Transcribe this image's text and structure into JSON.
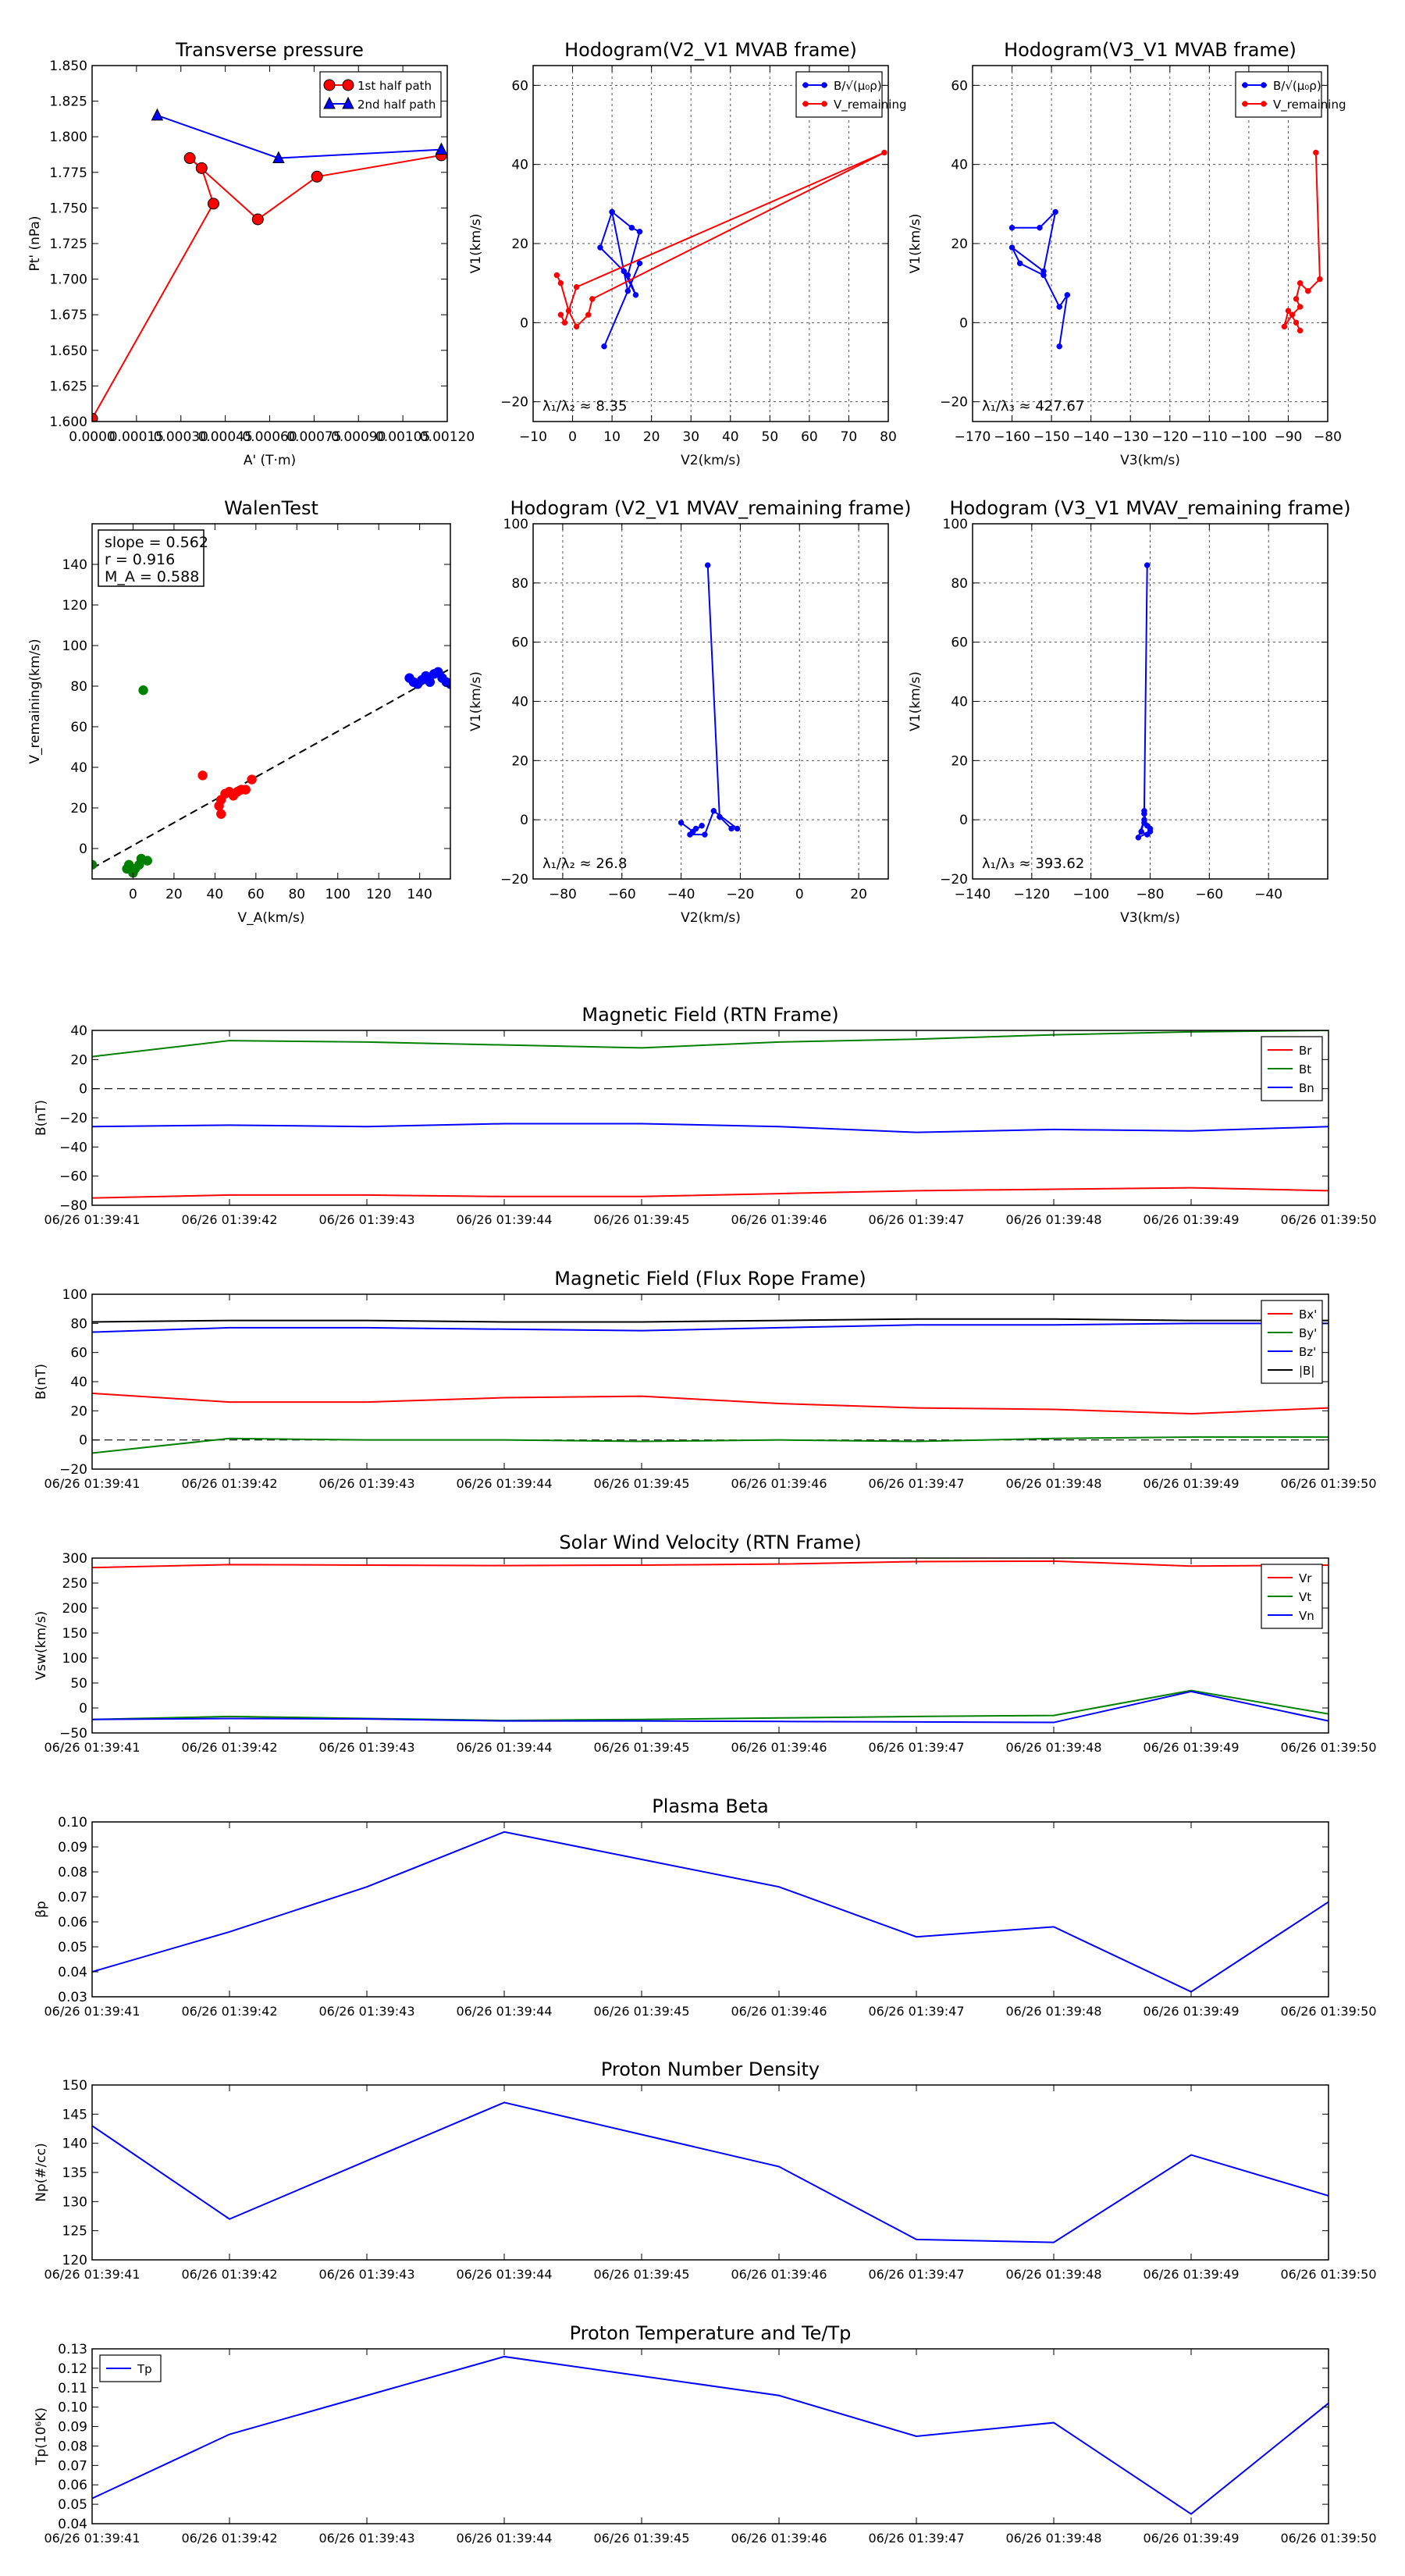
{
  "figure": {
    "colors": {
      "red": "#ff0000",
      "blue": "#0000ff",
      "green": "#008000",
      "black": "#000000",
      "grid": "#555555"
    }
  },
  "chart_data": [
    {
      "id": "transverse_pressure",
      "type": "line",
      "title": "Transverse pressure",
      "xlabel": "A' (T·m)",
      "ylabel": "Pt' (nPa)",
      "xlim": [
        0,
        0.0012
      ],
      "ylim": [
        1.6,
        1.85
      ],
      "grid": false,
      "legend": "top-right",
      "xticks": [
        0,
        0.00015,
        0.0003,
        0.00045,
        0.0006,
        0.00075,
        0.0009,
        0.00105,
        0.0012
      ],
      "xtick_labels": [
        "0.0000",
        "0.00015",
        "0.00030",
        "0.00045",
        "0.00060",
        "0.00075",
        "0.00090",
        "0.00105",
        "0.00120"
      ],
      "yticks": [
        1.6,
        1.625,
        1.65,
        1.675,
        1.7,
        1.725,
        1.75,
        1.775,
        1.8,
        1.825,
        1.85
      ],
      "ytick_labels": [
        "1.600",
        "1.625",
        "1.650",
        "1.675",
        "1.700",
        "1.725",
        "1.750",
        "1.775",
        "1.800",
        "1.825",
        "1.850"
      ],
      "series": [
        {
          "name": "1st half path",
          "color": "#ff0000",
          "marker": "circle",
          "x": [
            0.0,
            0.00041,
            0.00037,
            0.00033,
            0.00056,
            0.00076,
            0.00118
          ],
          "y": [
            1.602,
            1.753,
            1.778,
            1.785,
            1.742,
            1.772,
            1.787
          ]
        },
        {
          "name": "2nd half path",
          "color": "#0000ff",
          "marker": "triangle",
          "x": [
            0.00118,
            0.00063,
            0.00022
          ],
          "y": [
            1.791,
            1.785,
            1.815
          ]
        }
      ]
    },
    {
      "id": "hodo_v2v1_mvab",
      "type": "line",
      "title": "Hodogram(V2_V1 MVAB frame)",
      "xlabel": "V2(km/s)",
      "ylabel": "V1(km/s)",
      "xlim": [
        -10,
        80
      ],
      "ylim": [
        -25,
        65
      ],
      "grid": true,
      "legend": "top-right",
      "xticks": [
        -10,
        0,
        10,
        20,
        30,
        40,
        50,
        60,
        70,
        80
      ],
      "yticks": [
        -20,
        0,
        20,
        40,
        60
      ],
      "annotation": "λ₁/λ₂ ≈ 8.35",
      "series": [
        {
          "name": "B/√(μ₀ρ)",
          "color": "#0000ff",
          "marker": "dot",
          "x": [
            10,
            15,
            17,
            14,
            16,
            13,
            7,
            10,
            14,
            17,
            8
          ],
          "y": [
            28,
            24,
            23,
            12,
            7,
            13,
            19,
            28,
            8,
            15,
            -6
          ]
        },
        {
          "name": "V_remaining",
          "color": "#ff0000",
          "marker": "dot",
          "x": [
            -4,
            -3,
            -1,
            1,
            4,
            5,
            79,
            1,
            -2,
            -3
          ],
          "y": [
            12,
            10,
            3,
            -1,
            2,
            6,
            43,
            9,
            0,
            2
          ]
        }
      ]
    },
    {
      "id": "hodo_v3v1_mvab",
      "type": "line",
      "title": "Hodogram(V3_V1 MVAB frame)",
      "xlabel": "V3(km/s)",
      "ylabel": "V1(km/s)",
      "xlim": [
        -170,
        -80
      ],
      "ylim": [
        -25,
        65
      ],
      "grid": true,
      "legend": "top-right",
      "xticks": [
        -170,
        -160,
        -150,
        -140,
        -130,
        -120,
        -110,
        -100,
        -90,
        -80
      ],
      "yticks": [
        -20,
        0,
        20,
        40,
        60
      ],
      "annotation": "λ₁/λ₃ ≈ 427.67",
      "series": [
        {
          "name": "B/√(μ₀ρ)",
          "color": "#0000ff",
          "marker": "dot",
          "x": [
            -160,
            -153,
            -149,
            -152,
            -160,
            -158,
            -152,
            -148,
            -146,
            -148
          ],
          "y": [
            24,
            24,
            28,
            13,
            19,
            15,
            12,
            4,
            7,
            -6
          ]
        },
        {
          "name": "V_remaining",
          "color": "#ff0000",
          "marker": "dot",
          "x": [
            -83,
            -82,
            -85,
            -87,
            -88,
            -87,
            -89,
            -91,
            -90,
            -88,
            -87
          ],
          "y": [
            43,
            11,
            8,
            10,
            6,
            4,
            2,
            -1,
            3,
            0,
            -2
          ]
        }
      ]
    },
    {
      "id": "walen_test",
      "type": "scatter",
      "title": "WalenTest",
      "xlabel": "V_A(km/s)",
      "ylabel": "V_remaining(km/s)",
      "xlim": [
        -20,
        155
      ],
      "ylim": [
        -15,
        160
      ],
      "grid": false,
      "xticks": [
        0,
        20,
        40,
        60,
        80,
        100,
        120,
        140
      ],
      "yticks": [
        0,
        20,
        40,
        60,
        80,
        100,
        120,
        140
      ],
      "stats": [
        "slope = 0.562",
        "r = 0.916",
        "M_A = 0.588"
      ],
      "fit": {
        "slope": 0.562,
        "intercept": 1.5,
        "x_range": [
          -20,
          155
        ]
      },
      "series": [
        {
          "name": "green",
          "color": "#008000",
          "x": [
            5,
            -20,
            -3,
            0,
            4,
            7,
            -2,
            1,
            3
          ],
          "y": [
            78,
            -8,
            -10,
            -12,
            -5,
            -6,
            -8,
            -10,
            -8
          ]
        },
        {
          "name": "red",
          "color": "#ff0000",
          "x": [
            34,
            42,
            43,
            45,
            47,
            49,
            51,
            53,
            55,
            58,
            43
          ],
          "y": [
            36,
            21,
            17,
            27,
            28,
            26,
            28,
            29,
            29,
            34,
            24
          ]
        },
        {
          "name": "blue",
          "color": "#0000ff",
          "x": [
            135,
            137,
            139,
            141,
            143,
            145,
            147,
            149,
            151,
            153,
            155
          ],
          "y": [
            84,
            82,
            81,
            83,
            85,
            82,
            86,
            87,
            84,
            82,
            81
          ]
        }
      ]
    },
    {
      "id": "hodo_v2v1_mvav",
      "type": "line",
      "title": "Hodogram (V2_V1 MVAV_remaining frame)",
      "xlabel": "V2(km/s)",
      "ylabel": "V1(km/s)",
      "xlim": [
        -90,
        30
      ],
      "ylim": [
        -20,
        100
      ],
      "grid": true,
      "xticks": [
        -80,
        -60,
        -40,
        -20,
        0,
        20
      ],
      "yticks": [
        -20,
        0,
        20,
        40,
        60,
        80,
        100
      ],
      "annotation": "λ₁/λ₂ ≈ 26.8",
      "series": [
        {
          "name": "V",
          "color": "#0000ff",
          "marker": "dot",
          "x": [
            -31,
            -27,
            -23,
            -21,
            -29,
            -32,
            -37,
            -35,
            -33,
            -36,
            -40
          ],
          "y": [
            86,
            1,
            -3,
            -3,
            3,
            -5,
            -5,
            -3,
            -2,
            -4,
            -1
          ]
        }
      ]
    },
    {
      "id": "hodo_v3v1_mvav",
      "type": "line",
      "title": "Hodogram (V3_V1 MVAV_remaining frame)",
      "xlabel": "V3(km/s)",
      "ylabel": "V1(km/s)",
      "xlim": [
        -140,
        -20
      ],
      "ylim": [
        -20,
        100
      ],
      "grid": true,
      "xticks": [
        -140,
        -120,
        -100,
        -80,
        -60,
        -40
      ],
      "yticks": [
        -20,
        0,
        20,
        40,
        60,
        80,
        100
      ],
      "annotation": "λ₁/λ₃ ≈ 393.62",
      "series": [
        {
          "name": "V",
          "color": "#0000ff",
          "marker": "dot",
          "x": [
            -81,
            -82,
            -82,
            -80,
            -81,
            -83,
            -82,
            -84,
            -80,
            -81,
            -82
          ],
          "y": [
            86,
            3,
            -1,
            -3,
            -5,
            -4,
            0,
            -6,
            -4,
            -2,
            2
          ]
        }
      ]
    },
    {
      "id": "mag_rtn",
      "type": "line",
      "title": "Magnetic Field (RTN Frame)",
      "ylabel": "B(nT)",
      "ylim": [
        -80,
        40
      ],
      "yticks": [
        -80,
        -60,
        -40,
        -20,
        0,
        20,
        40
      ],
      "zero_line": true,
      "legend": "top-right",
      "x": [
        "06/26 01:39:41",
        "06/26 01:39:42",
        "06/26 01:39:43",
        "06/26 01:39:44",
        "06/26 01:39:45",
        "06/26 01:39:46",
        "06/26 01:39:47",
        "06/26 01:39:48",
        "06/26 01:39:49",
        "06/26 01:39:50"
      ],
      "series": [
        {
          "name": "Br",
          "color": "#ff0000",
          "values": [
            -75,
            -73,
            -73,
            -74,
            -74,
            -72,
            -70,
            -69,
            -68,
            -70
          ]
        },
        {
          "name": "Bt",
          "color": "#008000",
          "values": [
            22,
            33,
            32,
            30,
            28,
            32,
            34,
            37,
            39,
            40
          ]
        },
        {
          "name": "Bn",
          "color": "#0000ff",
          "values": [
            -26,
            -25,
            -26,
            -24,
            -24,
            -26,
            -30,
            -28,
            -29,
            -26
          ]
        }
      ]
    },
    {
      "id": "mag_fluxrope",
      "type": "line",
      "title": "Magnetic Field (Flux Rope Frame)",
      "ylabel": "B(nT)",
      "ylim": [
        -20,
        100
      ],
      "yticks": [
        -20,
        0,
        20,
        40,
        60,
        80,
        100
      ],
      "zero_line": true,
      "legend": "top-right",
      "x": [
        "06/26 01:39:41",
        "06/26 01:39:42",
        "06/26 01:39:43",
        "06/26 01:39:44",
        "06/26 01:39:45",
        "06/26 01:39:46",
        "06/26 01:39:47",
        "06/26 01:39:48",
        "06/26 01:39:49",
        "06/26 01:39:50"
      ],
      "series": [
        {
          "name": "Bx'",
          "color": "#ff0000",
          "values": [
            32,
            26,
            26,
            29,
            30,
            25,
            22,
            21,
            18,
            22
          ]
        },
        {
          "name": "By'",
          "color": "#008000",
          "values": [
            -9,
            1,
            0,
            0,
            -1,
            0,
            -1,
            1,
            2,
            2
          ]
        },
        {
          "name": "Bz'",
          "color": "#0000ff",
          "values": [
            74,
            77,
            77,
            76,
            75,
            77,
            79,
            79,
            80,
            80
          ]
        },
        {
          "name": "|B|",
          "color": "#000000",
          "values": [
            81,
            82,
            82,
            81,
            81,
            82,
            83,
            83,
            82,
            82
          ]
        }
      ]
    },
    {
      "id": "sw_velocity",
      "type": "line",
      "title": "Solar Wind Velocity (RTN Frame)",
      "ylabel": "Vsw(km/s)",
      "ylim": [
        -50,
        300
      ],
      "yticks": [
        -50,
        0,
        50,
        100,
        150,
        200,
        250,
        300
      ],
      "legend": "top-right",
      "x": [
        "06/26 01:39:41",
        "06/26 01:39:42",
        "06/26 01:39:43",
        "06/26 01:39:44",
        "06/26 01:39:45",
        "06/26 01:39:46",
        "06/26 01:39:47",
        "06/26 01:39:48",
        "06/26 01:39:49",
        "06/26 01:39:50"
      ],
      "series": [
        {
          "name": "Vr",
          "color": "#ff0000",
          "values": [
            281,
            287,
            286,
            285,
            286,
            288,
            293,
            294,
            284,
            286
          ]
        },
        {
          "name": "Vt",
          "color": "#008000",
          "values": [
            -23,
            -17,
            -21,
            -25,
            -23,
            -20,
            -17,
            -15,
            35,
            -12
          ]
        },
        {
          "name": "Vn",
          "color": "#0000ff",
          "values": [
            -23,
            -21,
            -22,
            -26,
            -26,
            -27,
            -28,
            -29,
            33,
            -26
          ]
        }
      ]
    },
    {
      "id": "plasma_beta",
      "type": "line",
      "title": "Plasma Beta",
      "ylabel": "βp",
      "ylim": [
        0.03,
        0.1
      ],
      "yticks": [
        0.03,
        0.04,
        0.05,
        0.06,
        0.07,
        0.08,
        0.09,
        0.1
      ],
      "ytick_labels": [
        "0.03",
        "0.04",
        "0.05",
        "0.06",
        "0.07",
        "0.08",
        "0.09",
        "0.10"
      ],
      "x": [
        "06/26 01:39:41",
        "06/26 01:39:42",
        "06/26 01:39:43",
        "06/26 01:39:44",
        "06/26 01:39:45",
        "06/26 01:39:46",
        "06/26 01:39:47",
        "06/26 01:39:48",
        "06/26 01:39:49",
        "06/26 01:39:50"
      ],
      "series": [
        {
          "name": "beta",
          "color": "#0000ff",
          "values": [
            0.04,
            0.056,
            0.074,
            0.096,
            0.085,
            0.074,
            0.054,
            0.058,
            0.032,
            0.068
          ]
        }
      ]
    },
    {
      "id": "proton_density",
      "type": "line",
      "title": "Proton Number Density",
      "ylabel": "Np(#/cc)",
      "ylim": [
        120,
        150
      ],
      "yticks": [
        120,
        125,
        130,
        135,
        140,
        145,
        150
      ],
      "x": [
        "06/26 01:39:41",
        "06/26 01:39:42",
        "06/26 01:39:43",
        "06/26 01:39:44",
        "06/26 01:39:45",
        "06/26 01:39:46",
        "06/26 01:39:47",
        "06/26 01:39:48",
        "06/26 01:39:49",
        "06/26 01:39:50"
      ],
      "series": [
        {
          "name": "Np",
          "color": "#0000ff",
          "values": [
            143,
            127,
            137,
            147,
            141.5,
            136,
            123.5,
            123,
            138,
            131
          ]
        }
      ]
    },
    {
      "id": "proton_temp",
      "type": "line",
      "title": "Proton Temperature and Te/Tp",
      "ylabel": "Tp(10⁶K)",
      "ylim": [
        0.04,
        0.13
      ],
      "yticks": [
        0.04,
        0.05,
        0.06,
        0.07,
        0.08,
        0.09,
        0.1,
        0.11,
        0.12,
        0.13
      ],
      "ytick_labels": [
        "0.04",
        "0.05",
        "0.06",
        "0.07",
        "0.08",
        "0.09",
        "0.10",
        "0.11",
        "0.12",
        "0.13"
      ],
      "legend": "top-left",
      "x": [
        "06/26 01:39:41",
        "06/26 01:39:42",
        "06/26 01:39:43",
        "06/26 01:39:44",
        "06/26 01:39:45",
        "06/26 01:39:46",
        "06/26 01:39:47",
        "06/26 01:39:48",
        "06/26 01:39:49",
        "06/26 01:39:50"
      ],
      "series": [
        {
          "name": "Tp",
          "color": "#0000ff",
          "values": [
            0.053,
            0.086,
            0.106,
            0.126,
            0.116,
            0.106,
            0.085,
            0.092,
            0.045,
            0.102
          ]
        }
      ]
    }
  ]
}
